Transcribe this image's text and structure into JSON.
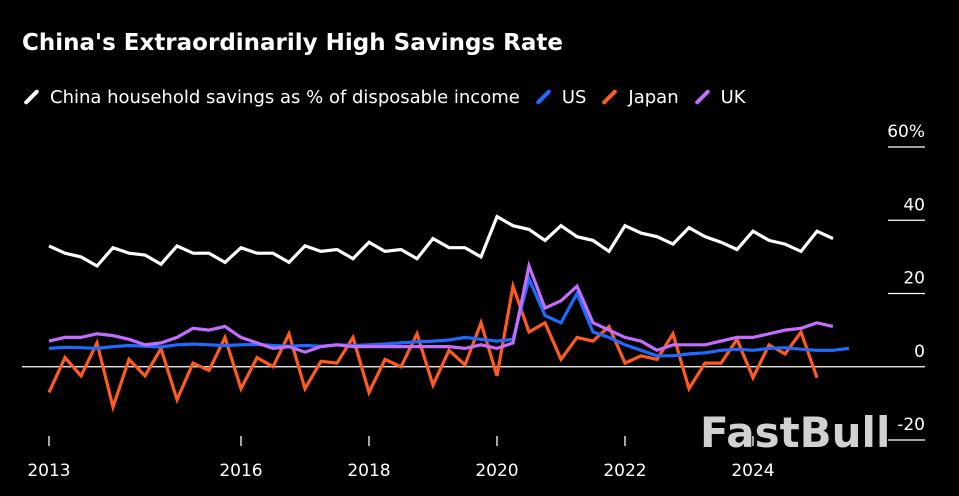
{
  "chart_data": {
    "type": "line",
    "title": "China's Extraordinarily High Savings Rate",
    "xlabel": "",
    "ylabel": "",
    "ylim": [
      -20,
      60
    ],
    "y_ticks": [
      60,
      40,
      20,
      0,
      -20
    ],
    "y_tick_labels": [
      "60%",
      "40",
      "20",
      "0",
      "-20"
    ],
    "x_ticks": [
      2013,
      2016,
      2018,
      2020,
      2022,
      2024
    ],
    "x_tick_labels": [
      "2013",
      "2016",
      "2018",
      "2020",
      "2022",
      "2024"
    ],
    "xlim": [
      2012.7,
      2025.6
    ],
    "legend_position": "top",
    "series": [
      {
        "name": "China household savings as % of disposable income",
        "color": "#ffffff",
        "x": [
          2013.0,
          2013.25,
          2013.5,
          2013.75,
          2014.0,
          2014.25,
          2014.5,
          2014.75,
          2015.0,
          2015.25,
          2015.5,
          2015.75,
          2016.0,
          2016.25,
          2016.5,
          2016.75,
          2017.0,
          2017.25,
          2017.5,
          2017.75,
          2018.0,
          2018.25,
          2018.5,
          2018.75,
          2019.0,
          2019.25,
          2019.5,
          2019.75,
          2020.0,
          2020.25,
          2020.5,
          2020.75,
          2021.0,
          2021.25,
          2021.5,
          2021.75,
          2022.0,
          2022.25,
          2022.5,
          2022.75,
          2023.0,
          2023.25,
          2023.5,
          2023.75,
          2024.0,
          2024.25,
          2024.5,
          2024.75,
          2025.0,
          2025.25,
          2025.5
        ],
        "values": [
          33,
          31,
          30,
          27.5,
          32.5,
          31,
          30.5,
          28,
          33,
          31,
          31,
          28.5,
          32.5,
          31,
          31,
          28.5,
          33,
          31.5,
          32,
          29.5,
          34,
          31.5,
          32,
          29.5,
          35,
          32.5,
          32.5,
          30,
          41,
          38.5,
          37.5,
          34.5,
          38.5,
          35.5,
          34.5,
          31.5,
          38.5,
          36.5,
          35.5,
          33.5,
          38,
          35.5,
          34,
          32,
          37,
          34.5,
          33.5,
          31.5,
          37,
          35,
          null
        ]
      },
      {
        "name": "US",
        "color": "#1f6bff",
        "x": [
          2013.0,
          2013.25,
          2013.5,
          2013.75,
          2014.0,
          2014.25,
          2014.5,
          2014.75,
          2015.0,
          2015.25,
          2015.5,
          2015.75,
          2016.0,
          2016.25,
          2016.5,
          2016.75,
          2017.0,
          2017.25,
          2017.5,
          2017.75,
          2018.0,
          2018.25,
          2018.5,
          2018.75,
          2019.0,
          2019.25,
          2019.5,
          2019.75,
          2020.0,
          2020.25,
          2020.5,
          2020.75,
          2021.0,
          2021.25,
          2021.5,
          2021.75,
          2022.0,
          2022.25,
          2022.5,
          2022.75,
          2023.0,
          2023.25,
          2023.5,
          2023.75,
          2024.0,
          2024.25,
          2024.5,
          2024.75,
          2025.0,
          2025.25,
          2025.5
        ],
        "values": [
          5,
          5.3,
          5.2,
          5,
          5.5,
          5.8,
          5.6,
          5.4,
          6,
          6.2,
          6,
          5.8,
          6,
          6.1,
          5.8,
          5.6,
          5.8,
          5.6,
          6,
          5.8,
          6,
          6.2,
          6.5,
          6.8,
          7,
          7.3,
          8,
          7.5,
          7,
          7.5,
          24,
          14,
          12,
          20,
          9.5,
          8,
          6,
          4.5,
          3,
          3,
          3.5,
          3.8,
          4.5,
          4.8,
          4.5,
          5,
          5.2,
          4.8,
          4.5,
          4.5,
          5
        ]
      },
      {
        "name": "Japan",
        "color": "#ff5a1f",
        "x": [
          2013.0,
          2013.25,
          2013.5,
          2013.75,
          2014.0,
          2014.25,
          2014.5,
          2014.75,
          2015.0,
          2015.25,
          2015.5,
          2015.75,
          2016.0,
          2016.25,
          2016.5,
          2016.75,
          2017.0,
          2017.25,
          2017.5,
          2017.75,
          2018.0,
          2018.25,
          2018.5,
          2018.75,
          2019.0,
          2019.25,
          2019.5,
          2019.75,
          2020.0,
          2020.25,
          2020.5,
          2020.75,
          2021.0,
          2021.25,
          2021.5,
          2021.75,
          2022.0,
          2022.25,
          2022.5,
          2022.75,
          2023.0,
          2023.25,
          2023.5,
          2023.75,
          2024.0,
          2024.25,
          2024.5,
          2024.75,
          2025.0,
          2025.25,
          2025.5
        ],
        "values": [
          -7,
          2.5,
          -2.5,
          6.5,
          -11,
          2,
          -2.5,
          5,
          -9,
          1,
          -1,
          8,
          -6,
          2.5,
          0,
          9,
          -6,
          1.5,
          1,
          8,
          -7,
          2,
          0,
          9,
          -5,
          4.5,
          0.5,
          12,
          -2.5,
          22,
          9.5,
          12,
          2,
          8,
          7,
          11,
          1,
          3,
          2,
          9,
          -6,
          1,
          1,
          7.5,
          -3,
          6,
          3.5,
          9.5,
          -3,
          null,
          null
        ]
      },
      {
        "name": "UK",
        "color": "#c36dff",
        "x": [
          2013.0,
          2013.25,
          2013.5,
          2013.75,
          2014.0,
          2014.25,
          2014.5,
          2014.75,
          2015.0,
          2015.25,
          2015.5,
          2015.75,
          2016.0,
          2016.25,
          2016.5,
          2016.75,
          2017.0,
          2017.25,
          2017.5,
          2017.75,
          2018.0,
          2018.25,
          2018.5,
          2018.75,
          2019.0,
          2019.25,
          2019.5,
          2019.75,
          2020.0,
          2020.25,
          2020.5,
          2020.75,
          2021.0,
          2021.25,
          2021.5,
          2021.75,
          2022.0,
          2022.25,
          2022.5,
          2022.75,
          2023.0,
          2023.25,
          2023.5,
          2023.75,
          2024.0,
          2024.25,
          2024.5,
          2024.75,
          2025.0,
          2025.25,
          2025.5
        ],
        "values": [
          7,
          8,
          8,
          9,
          8.5,
          7.5,
          6,
          6.5,
          8,
          10.5,
          10,
          11,
          8,
          6.5,
          5,
          5.5,
          4,
          5.5,
          6,
          5.5,
          5.5,
          5.5,
          5.5,
          5.5,
          5.5,
          5.5,
          5,
          6,
          5,
          6.5,
          27.5,
          16,
          18,
          22,
          12,
          10,
          8,
          7,
          4.5,
          6,
          6,
          6,
          7,
          8,
          8,
          9,
          10,
          10.5,
          12,
          11,
          null
        ]
      }
    ]
  },
  "watermark": "FastBull"
}
